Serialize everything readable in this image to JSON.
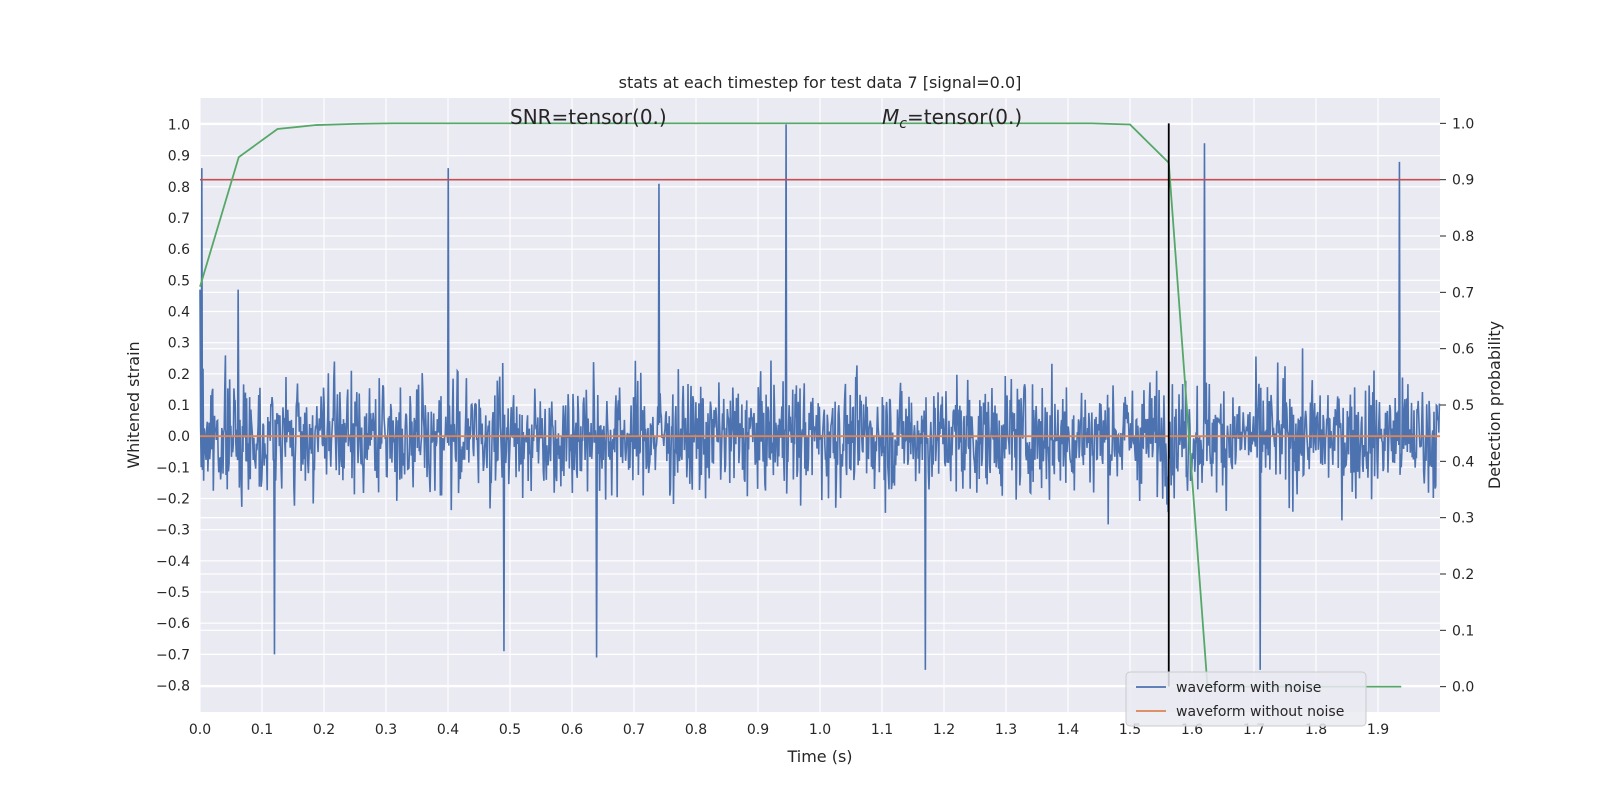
{
  "chart_data": {
    "type": "line",
    "title": "stats at each timestep for test data 7 [signal=0.0]",
    "xlabel": "Time (s)",
    "ylabel_left": "Whitened strain",
    "ylabel_right": "Detection probability",
    "xlim": [
      0.0,
      2.0
    ],
    "ylim_left": [
      -0.885,
      1.085
    ],
    "ylim_right": [
      -0.045,
      1.045
    ],
    "x_ticks": [
      "0.0",
      "0.1",
      "0.2",
      "0.3",
      "0.4",
      "0.5",
      "0.6",
      "0.7",
      "0.8",
      "0.9",
      "1.0",
      "1.1",
      "1.2",
      "1.3",
      "1.4",
      "1.5",
      "1.6",
      "1.7",
      "1.8",
      "1.9"
    ],
    "y_left_ticks": [
      "1.0",
      "0.9",
      "0.8",
      "0.7",
      "0.6",
      "0.5",
      "0.4",
      "0.3",
      "0.2",
      "0.1",
      "0.0",
      "−0.1",
      "−0.2",
      "−0.3",
      "−0.4",
      "−0.5",
      "−0.6",
      "−0.7",
      "−0.8"
    ],
    "y_right_ticks": [
      "1.0",
      "0.9",
      "0.8",
      "0.7",
      "0.6",
      "0.5",
      "0.4",
      "0.3",
      "0.2",
      "0.1",
      "0.0"
    ],
    "grid": true,
    "legend_placement": "lower-right",
    "annotations": {
      "snr": "SNR=tensor(0.)",
      "mc_symbol": "M",
      "mc_subscript": "c",
      "mc_value": "=tensor(0.)"
    },
    "series": [
      {
        "name": "waveform with noise",
        "axis": "left",
        "color": "#4c72b0",
        "description_note": "noisy strain samples, approx. 2048 samples over 2 s, peaks ~1.0 at t~0.94"
      },
      {
        "name": "waveform without noise",
        "axis": "left",
        "color": "#dd8452",
        "x": [
          0.0,
          2.0
        ],
        "y": [
          0.0,
          0.0
        ]
      },
      {
        "axis": "right",
        "color": "#55a868",
        "x": [
          0.0,
          0.0625,
          0.125,
          0.1875,
          0.25,
          0.3125,
          1.4375,
          1.5,
          1.5625,
          1.625,
          1.6875,
          1.75,
          1.8125,
          1.875,
          1.9375
        ],
        "y": [
          0.71,
          0.94,
          0.99,
          0.997,
          0.999,
          1.0,
          1.0,
          0.998,
          0.93,
          0.0,
          0.0,
          0.0,
          0.0,
          0.0,
          0.0
        ]
      }
    ],
    "threshold": {
      "axis": "right",
      "value": 0.9,
      "color": "#c44e52"
    },
    "vertical_marker": {
      "x": 1.5625,
      "y_range": [
        0.0,
        1.0
      ],
      "color": "#000000"
    },
    "noise_peaks": [
      {
        "x": 0.003,
        "y": 0.86
      },
      {
        "x": 0.062,
        "y": 0.47
      },
      {
        "x": 0.12,
        "y": -0.7
      },
      {
        "x": 0.4,
        "y": 0.86
      },
      {
        "x": 0.49,
        "y": -0.69
      },
      {
        "x": 0.64,
        "y": -0.71
      },
      {
        "x": 0.74,
        "y": 0.81
      },
      {
        "x": 0.945,
        "y": 1.0
      },
      {
        "x": 1.17,
        "y": -0.75
      },
      {
        "x": 1.62,
        "y": 0.94
      },
      {
        "x": 1.71,
        "y": -0.75
      },
      {
        "x": 1.935,
        "y": 0.88
      }
    ]
  }
}
